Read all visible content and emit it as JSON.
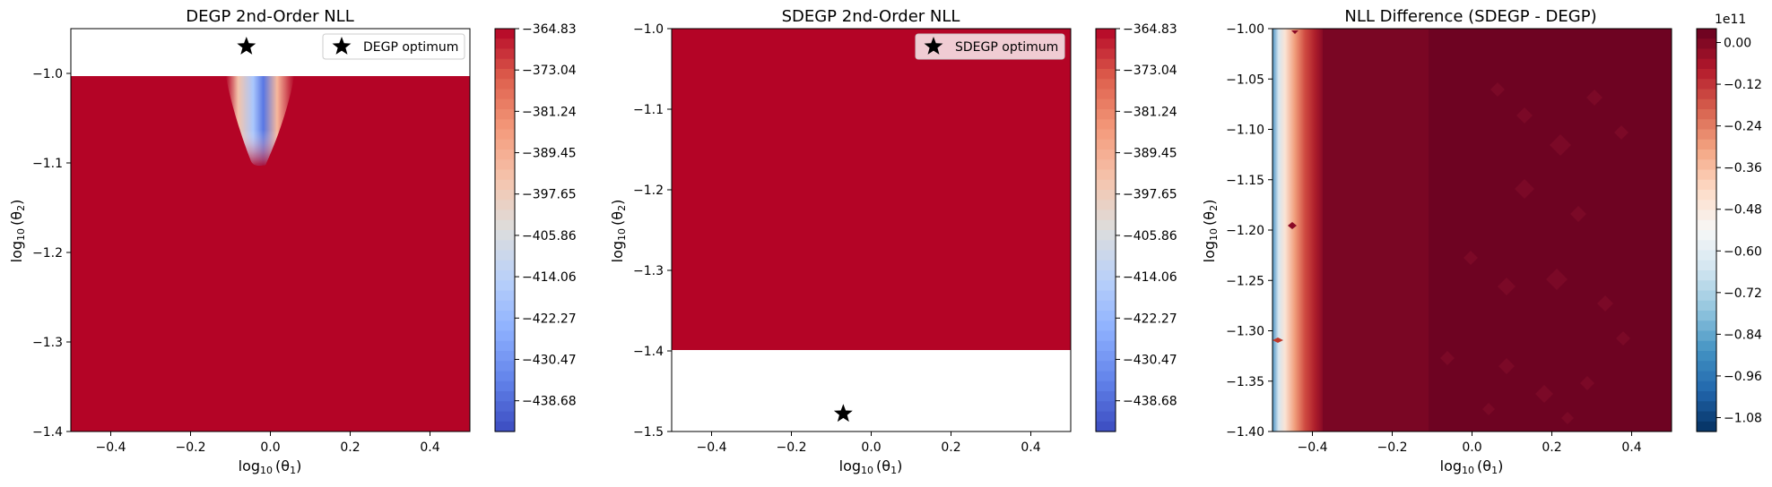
{
  "figure": {
    "background": "#ffffff",
    "plot_fill": "#b40426",
    "diff_fill": "#6e0322"
  },
  "chart_data": [
    {
      "type": "heatmap",
      "title": "DEGP 2nd-Order NLL",
      "xlabel": "log",
      "xlabel_sub": "10",
      "xlabel_tail": "(θ",
      "xlabel_tail_sub": "1",
      "ylabel": "log",
      "ylabel_sub": "10",
      "ylabel_tail": "(θ",
      "ylabel_tail_sub": "2",
      "xlim": [
        -0.5,
        0.5
      ],
      "ylim": [
        -1.4,
        -0.95
      ],
      "xticks": [
        -0.4,
        -0.2,
        0.0,
        0.2,
        0.4
      ],
      "xtick_labels": [
        "−0.4",
        "−0.2",
        "0.0",
        "0.2",
        "0.4"
      ],
      "yticks": [
        -1.4,
        -1.3,
        -1.2,
        -1.1,
        -1.0
      ],
      "ytick_labels": [
        "−1.4",
        "−1.3",
        "−1.2",
        "−1.1",
        "−1.0"
      ],
      "data_extent": {
        "x": [
          -0.5,
          0.5
        ],
        "y": [
          -1.4,
          -1.0
        ]
      },
      "optimum": {
        "x": -0.06,
        "y": -0.97,
        "label": "DEGP optimum"
      },
      "legend_loc": "upper right",
      "colormap": "coolwarm",
      "colorbar": {
        "range": [
          -444.78,
          -364.83
        ],
        "tick_values": [
          -364.83,
          -373.04,
          -381.24,
          -389.45,
          -397.65,
          -405.86,
          -414.06,
          -422.27,
          -430.47,
          -438.68
        ],
        "tick_labels": [
          "−364.83",
          "−373.04",
          "−381.24",
          "−389.45",
          "−397.65",
          "−405.86",
          "−414.06",
          "−422.27",
          "−430.47",
          "−438.68"
        ],
        "levels": 40,
        "reverse": false
      }
    },
    {
      "type": "heatmap",
      "title": "SDEGP 2nd-Order NLL",
      "xlabel": "log",
      "xlabel_sub": "10",
      "xlabel_tail": "(θ",
      "xlabel_tail_sub": "1",
      "ylabel": "log",
      "ylabel_sub": "10",
      "ylabel_tail": "(θ",
      "ylabel_tail_sub": "2",
      "xlim": [
        -0.5,
        0.5
      ],
      "ylim": [
        -1.5,
        -1.0
      ],
      "xticks": [
        -0.4,
        -0.2,
        0.0,
        0.2,
        0.4
      ],
      "xtick_labels": [
        "−0.4",
        "−0.2",
        "0.0",
        "0.2",
        "0.4"
      ],
      "yticks": [
        -1.5,
        -1.4,
        -1.3,
        -1.2,
        -1.1,
        -1.0
      ],
      "ytick_labels": [
        "−1.5",
        "−1.4",
        "−1.3",
        "−1.2",
        "−1.1",
        "−1.0"
      ],
      "data_extent": {
        "x": [
          -0.5,
          0.5
        ],
        "y": [
          -1.4,
          -1.0
        ]
      },
      "optimum": {
        "x": -0.07,
        "y": -1.478,
        "label": "SDEGP optimum"
      },
      "legend_loc": "upper right",
      "colormap": "coolwarm",
      "colorbar": {
        "range": [
          -444.78,
          -364.83
        ],
        "tick_values": [
          -364.83,
          -373.04,
          -381.24,
          -389.45,
          -397.65,
          -405.86,
          -414.06,
          -422.27,
          -430.47,
          -438.68
        ],
        "tick_labels": [
          "−364.83",
          "−373.04",
          "−381.24",
          "−389.45",
          "−397.65",
          "−405.86",
          "−414.06",
          "−422.27",
          "−430.47",
          "−438.68"
        ],
        "levels": 40,
        "reverse": false
      }
    },
    {
      "type": "heatmap",
      "title": "NLL Difference (SDEGP - DEGP)",
      "xlabel": "log",
      "xlabel_sub": "10",
      "xlabel_tail": "(θ",
      "xlabel_tail_sub": "1",
      "ylabel": "log",
      "ylabel_sub": "10",
      "ylabel_tail": "(θ",
      "ylabel_tail_sub": "2",
      "xlim": [
        -0.5,
        0.5
      ],
      "ylim": [
        -1.4,
        -1.0
      ],
      "xticks": [
        -0.4,
        -0.2,
        0.0,
        0.2,
        0.4
      ],
      "xtick_labels": [
        "−0.4",
        "−0.2",
        "0.0",
        "0.2",
        "0.4"
      ],
      "yticks": [
        -1.4,
        -1.35,
        -1.3,
        -1.25,
        -1.2,
        -1.15,
        -1.1,
        -1.05,
        -1.0
      ],
      "ytick_labels": [
        "−1.40",
        "−1.35",
        "−1.30",
        "−1.25",
        "−1.20",
        "−1.15",
        "−1.10",
        "−1.05",
        "−1.00"
      ],
      "data_extent": {
        "x": [
          -0.5,
          0.5
        ],
        "y": [
          -1.4,
          -1.0
        ]
      },
      "colormap": "RdBu",
      "colorbar": {
        "range": [
          -1.12,
          0.04
        ],
        "tick_values": [
          0.0,
          -0.12,
          -0.24,
          -0.36,
          -0.48,
          -0.6,
          -0.72,
          -0.84,
          -0.96,
          -1.08
        ],
        "tick_labels": [
          "0.00",
          "−0.12",
          "−0.24",
          "−0.36",
          "−0.48",
          "−0.60",
          "−0.72",
          "−0.84",
          "−0.96",
          "−1.08"
        ],
        "offset_text": "1e11",
        "levels": 40,
        "reverse": true
      }
    }
  ]
}
